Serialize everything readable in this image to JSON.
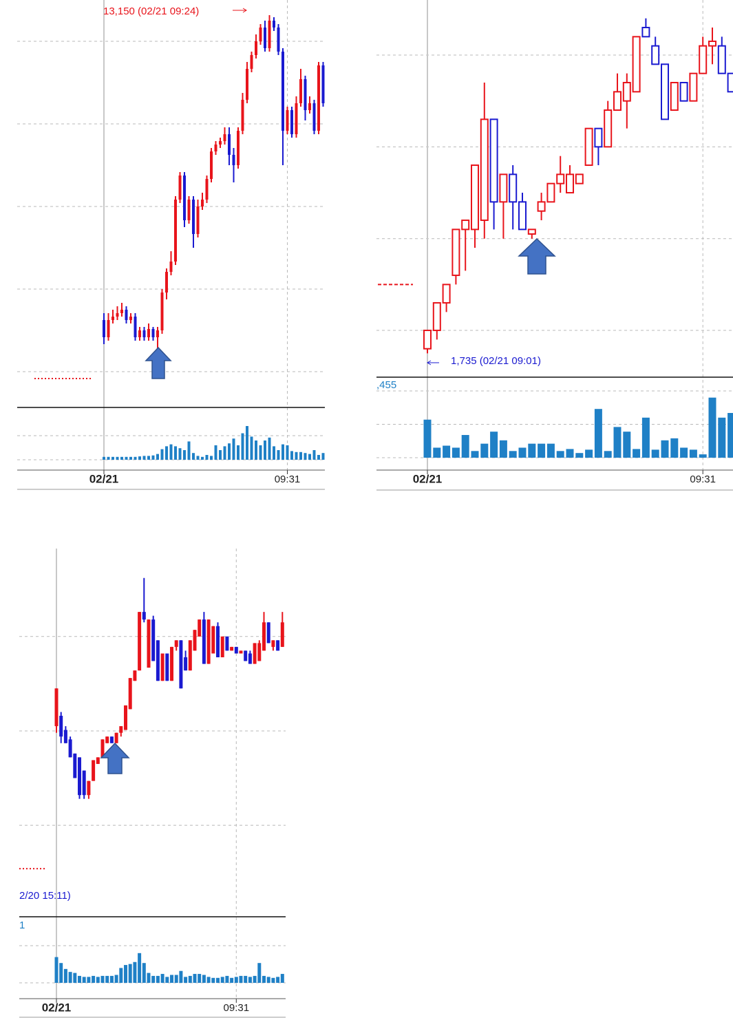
{
  "chart_data": [
    {
      "type": "candlestick",
      "annotations": [
        "13,150 (02/21 09:24)"
      ],
      "open": [
        10935,
        10810,
        10935,
        10960,
        10985,
        11010,
        10935,
        10960,
        10810,
        10860,
        10810,
        10870,
        10810,
        10860,
        11135,
        11285,
        11360,
        11810,
        11985,
        11660,
        11810,
        11560,
        11760,
        11810,
        11960,
        12160,
        12210,
        12235,
        12285,
        12135,
        12060,
        12310,
        12535,
        12760,
        12860,
        12960,
        13060,
        12910,
        13110,
        13060,
        12885,
        12310,
        12460,
        12285,
        12510,
        12685,
        12460,
        12510,
        12310,
        12785
      ],
      "high": [
        10985,
        10985,
        11010,
        11035,
        11060,
        11035,
        10985,
        10985,
        10885,
        10885,
        10910,
        10885,
        10885,
        11160,
        11310,
        11435,
        11835,
        12010,
        12010,
        11835,
        11835,
        11810,
        11860,
        11985,
        12185,
        12235,
        12260,
        12335,
        12335,
        12185,
        12335,
        12585,
        12810,
        12885,
        13010,
        13085,
        13110,
        13150,
        13135,
        13085,
        12910,
        12485,
        12485,
        12560,
        12760,
        12710,
        12560,
        12535,
        12810,
        12810
      ],
      "low": [
        10760,
        10785,
        10910,
        10935,
        10960,
        10910,
        10910,
        10785,
        10785,
        10785,
        10785,
        10785,
        10710,
        10835,
        11085,
        11260,
        11335,
        11785,
        11610,
        11635,
        11460,
        11535,
        11735,
        11785,
        11935,
        12135,
        12185,
        12210,
        12060,
        11935,
        12035,
        12285,
        12510,
        12735,
        12835,
        12935,
        12885,
        12885,
        13035,
        12860,
        12060,
        12285,
        12260,
        12260,
        12485,
        12385,
        12435,
        12285,
        12285,
        12485
      ],
      "close": [
        10810,
        10935,
        10960,
        10985,
        11010,
        10935,
        10960,
        10810,
        10860,
        10810,
        10870,
        10810,
        10860,
        11135,
        11285,
        11360,
        11810,
        11985,
        11660,
        11810,
        11560,
        11760,
        11810,
        11960,
        12160,
        12210,
        12235,
        12285,
        12135,
        12060,
        12310,
        12535,
        12760,
        12860,
        12960,
        13060,
        12910,
        13110,
        13060,
        12885,
        12310,
        12460,
        12285,
        12510,
        12685,
        12460,
        12510,
        12310,
        12785,
        12510
      ],
      "volume": [
        6,
        6,
        6,
        6,
        6,
        6,
        6,
        6,
        7,
        8,
        8,
        9,
        12,
        22,
        28,
        32,
        28,
        24,
        20,
        38,
        14,
        8,
        6,
        10,
        8,
        30,
        20,
        28,
        34,
        44,
        30,
        55,
        70,
        48,
        40,
        30,
        40,
        46,
        28,
        20,
        32,
        30,
        18,
        16,
        16,
        14,
        12,
        20,
        10,
        14
      ],
      "previous_close": 10510,
      "ylim": [
        10335,
        13260
      ],
      "yticks": [
        12960,
        12360,
        11760,
        11160,
        10560
      ],
      "volume_ylim": [
        0,
        100
      ],
      "volume_yticks": [
        0,
        50
      ],
      "xticks": [
        {
          "value": 0,
          "label": "02/21"
        },
        {
          "value": 41,
          "label": "09:31"
        }
      ],
      "hollow": false,
      "grid": true,
      "up_color": "#e8141b",
      "down_color": "#1a1ad0",
      "volume_color": "#1f80c6"
    },
    {
      "type": "candlestick",
      "annotations": [
        "1,735 (02/21 09:01)",
        ",455"
      ],
      "open": [
        1736,
        1740,
        1746,
        1752,
        1762,
        1762,
        1764,
        1786,
        1768,
        1774,
        1768,
        1761,
        1766,
        1768,
        1772,
        1770,
        1772,
        1776,
        1784,
        1780,
        1788,
        1790,
        1792,
        1806,
        1802,
        1798,
        1788,
        1794,
        1790,
        1796,
        1802,
        1802,
        1796
      ],
      "high": [
        1740,
        1746,
        1750,
        1762,
        1764,
        1776,
        1794,
        1786,
        1774,
        1776,
        1770,
        1762,
        1770,
        1772,
        1778,
        1776,
        1774,
        1784,
        1784,
        1790,
        1796,
        1796,
        1804,
        1808,
        1804,
        1798,
        1794,
        1794,
        1796,
        1804,
        1806,
        1804,
        1796
      ],
      "low": [
        1735,
        1738,
        1744,
        1750,
        1753,
        1758,
        1760,
        1762,
        1760,
        1762,
        1762,
        1760,
        1764,
        1768,
        1770,
        1770,
        1772,
        1776,
        1776,
        1780,
        1788,
        1784,
        1792,
        1804,
        1798,
        1786,
        1788,
        1790,
        1790,
        1796,
        1798,
        1796,
        1792
      ],
      "close": [
        1740,
        1746,
        1750,
        1762,
        1764,
        1776,
        1786,
        1768,
        1774,
        1768,
        1762,
        1762,
        1768,
        1772,
        1774,
        1774,
        1774,
        1784,
        1780,
        1788,
        1792,
        1794,
        1804,
        1804,
        1798,
        1786,
        1794,
        1790,
        1796,
        1802,
        1803,
        1796,
        1792
      ],
      "volume": [
        57,
        15,
        18,
        15,
        34,
        10,
        21,
        39,
        26,
        10,
        15,
        21,
        21,
        21,
        10,
        13,
        7,
        12,
        73,
        10,
        46,
        39,
        13,
        60,
        12,
        26,
        29,
        15,
        12,
        5,
        90,
        60,
        67
      ],
      "previous_close": 1750,
      "ylim": [
        1730,
        1812
      ],
      "yticks": [
        1800,
        1780,
        1760,
        1740
      ],
      "volume_ylim": [
        0,
        100
      ],
      "volume_yticks": [
        0,
        50,
        100
      ],
      "xticks": [
        {
          "value": 0,
          "label": "02/21"
        },
        {
          "value": 29,
          "label": "09:31"
        }
      ],
      "hollow": true,
      "grid": true,
      "up_color": "#e8141b",
      "down_color": "#1a1ad0",
      "volume_color": "#1f80c6"
    },
    {
      "type": "candlestick",
      "annotations": [
        "2/20 15:11)",
        "1"
      ],
      "open": [
        2905,
        2916,
        2901,
        2891,
        2876,
        2872,
        2858,
        2832,
        2847,
        2865,
        2872,
        2887,
        2894,
        2887,
        2898,
        2901,
        2923,
        2953,
        2964,
        3026,
        2967,
        3018,
        2996,
        2953,
        2982,
        2953,
        2989,
        2996,
        2978,
        2964,
        2985,
        3000,
        3018,
        2971,
        2982,
        3011,
        2978,
        3000,
        2985,
        2989,
        2982,
        2985,
        2982,
        2971,
        2974,
        2985,
        3015,
        2989,
        2996,
        2989
      ],
      "high": [
        2945,
        2920,
        2905,
        2894,
        2876,
        2872,
        2858,
        2847,
        2869,
        2872,
        2891,
        2894,
        2894,
        2898,
        2905,
        2927,
        2956,
        2964,
        3026,
        3062,
        3018,
        3022,
        2996,
        2982,
        2982,
        2989,
        2996,
        2996,
        2985,
        2996,
        3007,
        3018,
        3026,
        3018,
        3011,
        3015,
        3000,
        3000,
        2989,
        2989,
        2985,
        2985,
        2985,
        2993,
        2996,
        3026,
        3015,
        2996,
        2996,
        3026
      ],
      "low": [
        2898,
        2887,
        2887,
        2872,
        2850,
        2828,
        2828,
        2828,
        2847,
        2865,
        2872,
        2887,
        2887,
        2887,
        2894,
        2901,
        2923,
        2953,
        2964,
        3015,
        2967,
        2974,
        2953,
        2953,
        2953,
        2953,
        2985,
        2945,
        2964,
        2964,
        2985,
        3000,
        2971,
        2971,
        2982,
        2978,
        2978,
        2985,
        2985,
        2982,
        2982,
        2974,
        2971,
        2971,
        2974,
        2985,
        2993,
        2985,
        2985,
        2989
      ],
      "close": [
        2945,
        2894,
        2887,
        2872,
        2850,
        2832,
        2832,
        2847,
        2869,
        2872,
        2891,
        2894,
        2887,
        2898,
        2905,
        2927,
        2956,
        2964,
        3026,
        3018,
        3018,
        2974,
        2953,
        2982,
        2953,
        2989,
        2996,
        2945,
        2964,
        2996,
        3007,
        3018,
        2971,
        3018,
        3011,
        2978,
        3000,
        2985,
        2989,
        2982,
        2985,
        2974,
        2971,
        2993,
        2993,
        3015,
        2993,
        2996,
        2985,
        3015
      ],
      "volume": [
        52,
        40,
        28,
        22,
        20,
        14,
        12,
        12,
        14,
        12,
        14,
        14,
        14,
        16,
        30,
        36,
        38,
        42,
        60,
        40,
        20,
        14,
        14,
        18,
        12,
        16,
        16,
        24,
        12,
        14,
        18,
        18,
        16,
        12,
        10,
        10,
        12,
        14,
        10,
        12,
        14,
        14,
        12,
        14,
        40,
        14,
        12,
        10,
        12,
        18
      ],
      "previous_close": 2754,
      "ylim": [
        2706,
        3091
      ],
      "yticks": [
        3000,
        2900,
        2800
      ],
      "volume_ylim": [
        0,
        150
      ],
      "volume_yticks": [
        0,
        75
      ],
      "xticks": [
        {
          "value": 0,
          "label": "02/21"
        },
        {
          "value": 39,
          "label": "09:31"
        }
      ],
      "hollow": false,
      "grid": true,
      "up_color": "#e8141b",
      "down_color": "#1a1ad0",
      "volume_color": "#1f80c6"
    }
  ]
}
